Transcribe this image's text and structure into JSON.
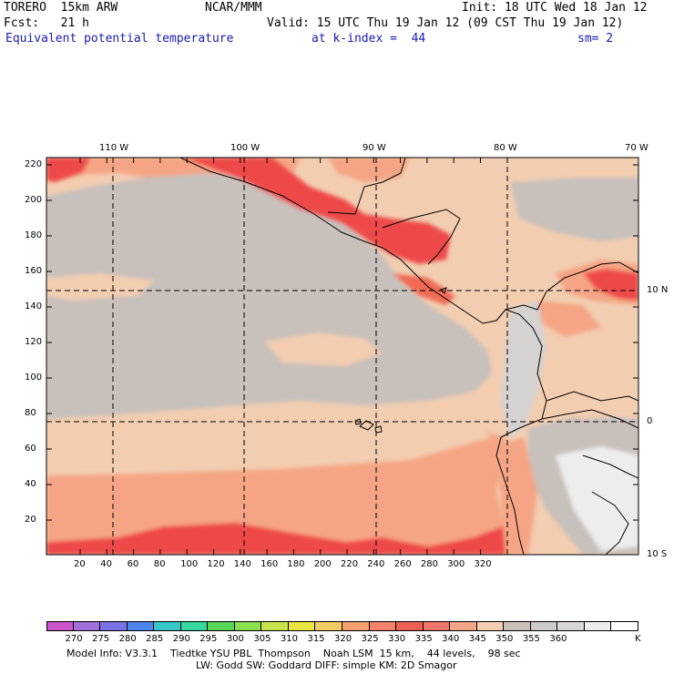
{
  "header": {
    "line1_left": "TORERO  15km ARW",
    "line1_mid": "NCAR/MMM",
    "line1_right": "Init: 18 UTC Wed 18 Jan 12",
    "line2_left": "Fcst:   21 h",
    "line2_right": "Valid: 15 UTC Thu 19 Jan 12 (09 CST Thu 19 Jan 12)",
    "field": "Equivalent potential temperature",
    "level": "at k-index =  44",
    "smoothing": "sm= 2"
  },
  "map": {
    "top_lon_labels": [
      "110 W",
      "100 W",
      "90 W",
      "80 W",
      "70 W"
    ],
    "right_lat_labels": [
      "10 N",
      "0",
      "10 S"
    ],
    "y_axis_labels": [
      "220",
      "200",
      "180",
      "160",
      "140",
      "120",
      "100",
      "80",
      "60",
      "40",
      "20"
    ],
    "x_axis_labels": [
      "20",
      "40",
      "60",
      "80",
      "100",
      "120",
      "140",
      "160",
      "180",
      "200",
      "220",
      "240",
      "260",
      "280",
      "300",
      "320"
    ],
    "colors": {
      "gray": "#c7c0bb",
      "tan": "#f2cdb0",
      "salmon": "#f5a585",
      "red_orange": "#f06a55",
      "red": "#ee4848",
      "light_gray": "#d5d2d2",
      "white_gray": "#ededed"
    }
  },
  "colorbar": {
    "colors": [
      "#cc55cc",
      "#a070d8",
      "#7a72e6",
      "#4a84ec",
      "#36c8c8",
      "#36d8a0",
      "#56d456",
      "#8ae04a",
      "#c6e44a",
      "#e8e440",
      "#f4cc66",
      "#f4a070",
      "#f4826a",
      "#ee6054",
      "#f0746a",
      "#f2a688",
      "#f4cdb2",
      "#c9c0ba",
      "#cfcbca",
      "#d8d6d6",
      "#ededed",
      "#ffffff"
    ],
    "labels": [
      "270",
      "275",
      "280",
      "285",
      "290",
      "295",
      "300",
      "305",
      "310",
      "315",
      "320",
      "325",
      "330",
      "335",
      "340",
      "345",
      "350",
      "355",
      "360"
    ],
    "unit": "K"
  },
  "footer": {
    "line1": "Model Info: V3.3.1    Tiedtke YSU PBL  Thompson    Noah LSM  15 km,    44 levels,    98 sec",
    "line2": "LW: Godd SW: Goddard DIFF: simple KM: 2D Smagor"
  }
}
